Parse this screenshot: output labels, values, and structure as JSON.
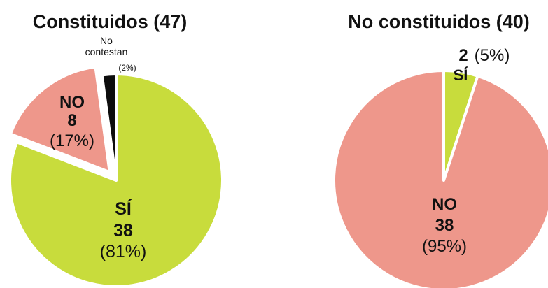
{
  "chart_data": [
    {
      "type": "pie",
      "title": "Constituidos (47)",
      "slices": [
        {
          "label": "SÍ",
          "count": "38",
          "percent": "(81%)",
          "value": 38,
          "color": "#c8dc3c"
        },
        {
          "label": "NO",
          "count": "8",
          "percent": "(17%)",
          "value": 8,
          "color": "#ee978b",
          "exploded": true
        },
        {
          "label": "No contestan",
          "label_line1": "No",
          "label_line2": "contestan",
          "count": "1",
          "percent": "(2%)",
          "value": 1,
          "color": "#0d0d0d"
        }
      ]
    },
    {
      "type": "pie",
      "title": "No constituidos (40)",
      "slices": [
        {
          "label": "SÍ",
          "count": "2",
          "percent": "(5%)",
          "value": 2,
          "color": "#c8dc3c"
        },
        {
          "label": "NO",
          "count": "38",
          "percent": "(95%)",
          "value": 38,
          "color": "#ee978b"
        }
      ]
    }
  ]
}
